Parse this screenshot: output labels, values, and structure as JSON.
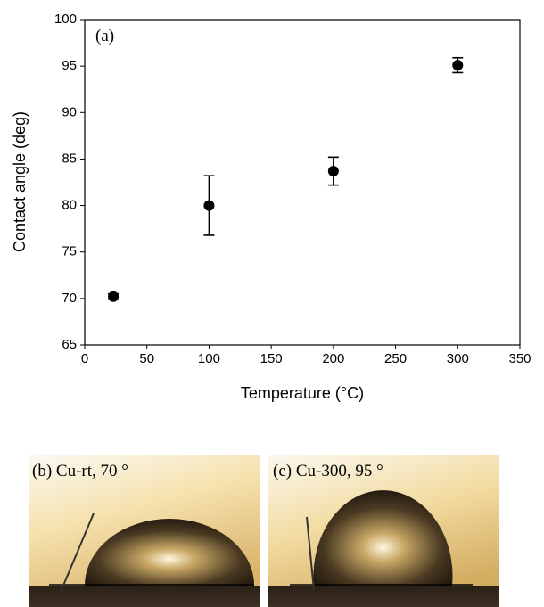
{
  "chart_data": {
    "type": "scatter",
    "annotation": "(a)",
    "x_label": "Temperature (°C)",
    "y_label": "Contact angle (deg)",
    "x": [
      23,
      100,
      200,
      300
    ],
    "values": [
      70.2,
      80.0,
      83.7,
      95.1
    ],
    "errors": [
      0.3,
      3.2,
      1.5,
      0.8
    ],
    "color": "#000000",
    "xlim": [
      0,
      350
    ],
    "xticks": [
      0,
      50,
      100,
      150,
      200,
      250,
      300,
      350
    ],
    "ylim": [
      65,
      100
    ],
    "yticks": [
      65,
      70,
      75,
      80,
      85,
      90,
      95,
      100
    ],
    "grid": false
  },
  "images": [
    {
      "label": "(b) Cu-rt, 70 °"
    },
    {
      "label": "(c) Cu-300, 95 °"
    }
  ]
}
